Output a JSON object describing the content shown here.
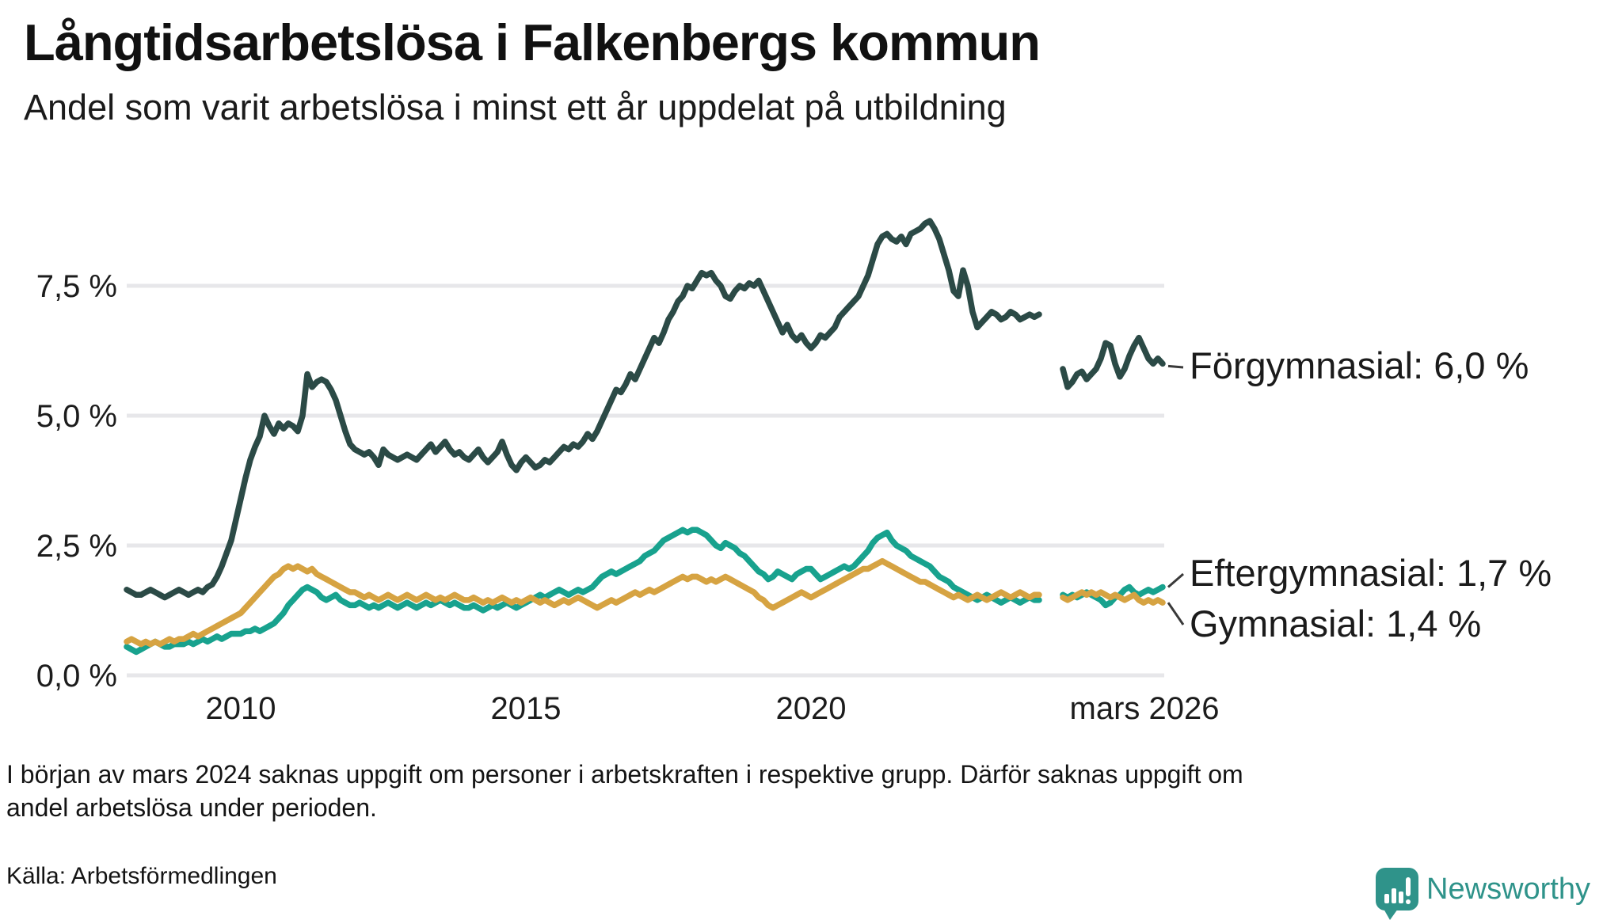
{
  "header": {
    "title": "Långtidsarbetslösa i Falkenbergs kommun",
    "subtitle": "Andel som varit arbetslösa i minst ett år uppdelat på utbildning"
  },
  "footer": {
    "footnote_lines": [
      "I början av mars 2024 saknas uppgift om personer i arbetskraften i respektive grupp. Därför saknas uppgift om",
      "andel arbetslösa under perioden."
    ],
    "source": "Källa: Arbetsförmedlingen",
    "logo_text": "Newsworthy",
    "logo_icon": "speech-bubble-bar-chart-icon",
    "logo_color": "#2f938a"
  },
  "chart_data": {
    "type": "line",
    "unit": "%",
    "x_start": "2008-01",
    "x_end": "2026-03",
    "x_resolution": "monthly",
    "gap_note": "Data saknas ca feb–maj 2024 (lucka i alla tre serier)",
    "grid": "horizontal-only",
    "grid_color": "#e7e7ea",
    "connector_color": "#3a3a3a",
    "y_ticks": [
      {
        "value": 0.0,
        "label": "0,0 %"
      },
      {
        "value": 2.5,
        "label": "2,5 %"
      },
      {
        "value": 5.0,
        "label": "5,0 %"
      },
      {
        "value": 7.5,
        "label": "7,5 %"
      }
    ],
    "x_ticks": [
      {
        "month_index": 24,
        "label": "2010"
      },
      {
        "month_index": 84,
        "label": "2015"
      },
      {
        "month_index": 144,
        "label": "2020"
      },
      {
        "month_index": 218,
        "label": "mars 2026"
      }
    ],
    "series": [
      {
        "name": "Förgymnasial",
        "end_label": "Förgymnasial: 6,0 %",
        "end_value": 6.0,
        "color": "#2b4a46",
        "values": [
          1.65,
          1.6,
          1.55,
          1.55,
          1.6,
          1.65,
          1.6,
          1.55,
          1.5,
          1.55,
          1.6,
          1.65,
          1.6,
          1.55,
          1.6,
          1.65,
          1.6,
          1.7,
          1.75,
          1.9,
          2.1,
          2.35,
          2.6,
          3.0,
          3.4,
          3.8,
          4.15,
          4.4,
          4.6,
          5.0,
          4.8,
          4.65,
          4.85,
          4.75,
          4.85,
          4.8,
          4.7,
          5.0,
          5.8,
          5.55,
          5.65,
          5.7,
          5.65,
          5.5,
          5.3,
          5.0,
          4.7,
          4.45,
          4.35,
          4.3,
          4.25,
          4.3,
          4.2,
          4.05,
          4.35,
          4.25,
          4.2,
          4.15,
          4.2,
          4.25,
          4.2,
          4.15,
          4.25,
          4.35,
          4.45,
          4.3,
          4.4,
          4.5,
          4.35,
          4.25,
          4.3,
          4.2,
          4.15,
          4.25,
          4.35,
          4.2,
          4.1,
          4.2,
          4.3,
          4.5,
          4.25,
          4.05,
          3.95,
          4.1,
          4.2,
          4.1,
          4.0,
          4.05,
          4.15,
          4.1,
          4.2,
          4.3,
          4.4,
          4.35,
          4.45,
          4.4,
          4.5,
          4.65,
          4.55,
          4.7,
          4.9,
          5.1,
          5.3,
          5.5,
          5.45,
          5.6,
          5.8,
          5.7,
          5.9,
          6.1,
          6.3,
          6.5,
          6.4,
          6.6,
          6.85,
          7.0,
          7.2,
          7.3,
          7.5,
          7.45,
          7.6,
          7.75,
          7.7,
          7.75,
          7.6,
          7.5,
          7.3,
          7.25,
          7.4,
          7.5,
          7.45,
          7.55,
          7.5,
          7.6,
          7.4,
          7.2,
          7.0,
          6.8,
          6.6,
          6.75,
          6.55,
          6.45,
          6.55,
          6.4,
          6.3,
          6.4,
          6.55,
          6.5,
          6.6,
          6.7,
          6.9,
          7.0,
          7.1,
          7.2,
          7.3,
          7.5,
          7.7,
          8.0,
          8.3,
          8.45,
          8.5,
          8.4,
          8.35,
          8.45,
          8.3,
          8.5,
          8.55,
          8.6,
          8.7,
          8.75,
          8.6,
          8.4,
          8.1,
          7.8,
          7.4,
          7.3,
          7.8,
          7.5,
          7.0,
          6.7,
          6.8,
          6.9,
          7.0,
          6.95,
          6.85,
          6.9,
          7.0,
          6.95,
          6.85,
          6.9,
          6.95,
          6.9,
          6.95,
          null,
          null,
          null,
          null,
          5.9,
          5.55,
          5.65,
          5.8,
          5.85,
          5.7,
          5.8,
          5.9,
          6.1,
          6.4,
          6.35,
          6.0,
          5.75,
          5.9,
          6.15,
          6.35,
          6.5,
          6.3,
          6.1,
          6.0,
          6.1,
          6.0
        ]
      },
      {
        "name": "Eftergymnasial",
        "end_label": "Eftergymnasial: 1,7 %",
        "end_value": 1.7,
        "color": "#18a28e",
        "values": [
          0.55,
          0.5,
          0.45,
          0.5,
          0.55,
          0.6,
          0.65,
          0.6,
          0.55,
          0.55,
          0.6,
          0.6,
          0.6,
          0.65,
          0.6,
          0.65,
          0.7,
          0.65,
          0.7,
          0.75,
          0.7,
          0.75,
          0.8,
          0.8,
          0.8,
          0.85,
          0.85,
          0.9,
          0.85,
          0.9,
          0.95,
          1.0,
          1.1,
          1.2,
          1.35,
          1.45,
          1.55,
          1.65,
          1.7,
          1.65,
          1.6,
          1.5,
          1.45,
          1.5,
          1.55,
          1.45,
          1.4,
          1.35,
          1.35,
          1.4,
          1.35,
          1.3,
          1.35,
          1.3,
          1.35,
          1.4,
          1.35,
          1.3,
          1.35,
          1.4,
          1.35,
          1.3,
          1.35,
          1.4,
          1.35,
          1.4,
          1.45,
          1.4,
          1.35,
          1.4,
          1.35,
          1.3,
          1.3,
          1.35,
          1.3,
          1.25,
          1.3,
          1.35,
          1.3,
          1.35,
          1.4,
          1.35,
          1.3,
          1.35,
          1.4,
          1.45,
          1.5,
          1.55,
          1.5,
          1.55,
          1.6,
          1.65,
          1.6,
          1.55,
          1.6,
          1.65,
          1.6,
          1.65,
          1.7,
          1.8,
          1.9,
          1.95,
          2.0,
          1.95,
          2.0,
          2.05,
          2.1,
          2.15,
          2.2,
          2.3,
          2.35,
          2.4,
          2.5,
          2.6,
          2.65,
          2.7,
          2.75,
          2.8,
          2.75,
          2.8,
          2.8,
          2.75,
          2.7,
          2.6,
          2.5,
          2.45,
          2.55,
          2.5,
          2.45,
          2.35,
          2.3,
          2.2,
          2.1,
          2.0,
          1.95,
          1.85,
          1.9,
          2.0,
          1.95,
          1.9,
          1.85,
          1.95,
          2.0,
          2.05,
          2.05,
          1.95,
          1.85,
          1.9,
          1.95,
          2.0,
          2.05,
          2.1,
          2.05,
          2.1,
          2.2,
          2.3,
          2.4,
          2.55,
          2.65,
          2.7,
          2.75,
          2.6,
          2.5,
          2.45,
          2.4,
          2.3,
          2.25,
          2.2,
          2.15,
          2.1,
          2.0,
          1.9,
          1.85,
          1.8,
          1.7,
          1.65,
          1.6,
          1.55,
          1.5,
          1.45,
          1.5,
          1.55,
          1.5,
          1.45,
          1.4,
          1.45,
          1.5,
          1.45,
          1.4,
          1.45,
          1.5,
          1.45,
          1.45,
          null,
          null,
          null,
          null,
          1.55,
          1.5,
          1.55,
          1.5,
          1.55,
          1.6,
          1.55,
          1.5,
          1.45,
          1.35,
          1.4,
          1.5,
          1.55,
          1.65,
          1.7,
          1.6,
          1.55,
          1.6,
          1.65,
          1.6,
          1.65,
          1.7
        ]
      },
      {
        "name": "Gymnasial",
        "end_label": "Gymnasial: 1,4 %",
        "end_value": 1.4,
        "color": "#d6a342",
        "values": [
          0.65,
          0.7,
          0.65,
          0.6,
          0.65,
          0.6,
          0.65,
          0.6,
          0.65,
          0.7,
          0.65,
          0.7,
          0.7,
          0.75,
          0.8,
          0.75,
          0.8,
          0.85,
          0.9,
          0.95,
          1.0,
          1.05,
          1.1,
          1.15,
          1.2,
          1.3,
          1.4,
          1.5,
          1.6,
          1.7,
          1.8,
          1.9,
          1.95,
          2.05,
          2.1,
          2.05,
          2.1,
          2.05,
          2.0,
          2.05,
          1.95,
          1.9,
          1.85,
          1.8,
          1.75,
          1.7,
          1.65,
          1.6,
          1.6,
          1.55,
          1.5,
          1.55,
          1.5,
          1.45,
          1.5,
          1.55,
          1.5,
          1.45,
          1.5,
          1.55,
          1.5,
          1.45,
          1.5,
          1.55,
          1.5,
          1.45,
          1.5,
          1.45,
          1.5,
          1.55,
          1.5,
          1.45,
          1.45,
          1.5,
          1.45,
          1.4,
          1.45,
          1.4,
          1.45,
          1.5,
          1.45,
          1.4,
          1.45,
          1.4,
          1.45,
          1.5,
          1.45,
          1.4,
          1.45,
          1.4,
          1.35,
          1.4,
          1.45,
          1.4,
          1.45,
          1.5,
          1.45,
          1.4,
          1.35,
          1.3,
          1.35,
          1.4,
          1.45,
          1.4,
          1.45,
          1.5,
          1.55,
          1.6,
          1.55,
          1.6,
          1.65,
          1.6,
          1.65,
          1.7,
          1.75,
          1.8,
          1.85,
          1.9,
          1.85,
          1.9,
          1.9,
          1.85,
          1.8,
          1.85,
          1.8,
          1.85,
          1.9,
          1.85,
          1.8,
          1.75,
          1.7,
          1.65,
          1.6,
          1.5,
          1.45,
          1.35,
          1.3,
          1.35,
          1.4,
          1.45,
          1.5,
          1.55,
          1.6,
          1.55,
          1.5,
          1.55,
          1.6,
          1.65,
          1.7,
          1.75,
          1.8,
          1.85,
          1.9,
          1.95,
          2.0,
          2.05,
          2.05,
          2.1,
          2.15,
          2.2,
          2.15,
          2.1,
          2.05,
          2.0,
          1.95,
          1.9,
          1.85,
          1.8,
          1.8,
          1.75,
          1.7,
          1.65,
          1.6,
          1.55,
          1.5,
          1.55,
          1.5,
          1.45,
          1.5,
          1.55,
          1.5,
          1.45,
          1.5,
          1.55,
          1.6,
          1.55,
          1.5,
          1.55,
          1.6,
          1.55,
          1.5,
          1.55,
          1.55,
          null,
          null,
          null,
          null,
          1.5,
          1.45,
          1.5,
          1.55,
          1.6,
          1.55,
          1.6,
          1.55,
          1.6,
          1.55,
          1.5,
          1.55,
          1.5,
          1.45,
          1.5,
          1.55,
          1.45,
          1.4,
          1.45,
          1.4,
          1.45,
          1.4
        ]
      }
    ]
  }
}
